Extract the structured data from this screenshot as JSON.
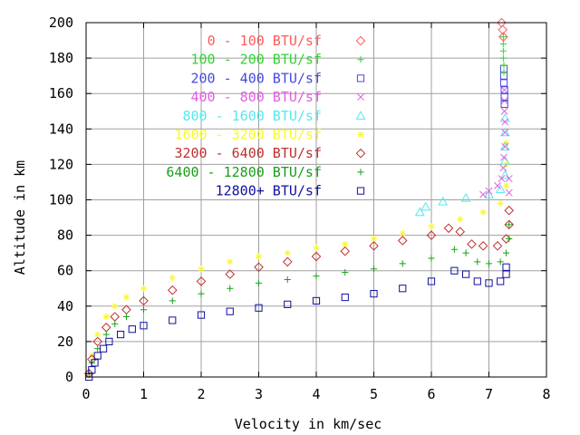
{
  "chart_data": {
    "type": "scatter",
    "title": "",
    "xlabel": "Velocity in km/sec",
    "ylabel": "Altitude in km",
    "xlim": [
      0,
      8
    ],
    "ylim": [
      0,
      200
    ],
    "xticks": [
      0,
      1,
      2,
      3,
      4,
      5,
      6,
      7,
      8
    ],
    "yticks": [
      0,
      20,
      40,
      60,
      80,
      100,
      120,
      140,
      160,
      180,
      200
    ],
    "grid": true,
    "legend_position": "top-left",
    "series": [
      {
        "name": "0 - 100 BTU/sf",
        "color": "#ff5a5a",
        "marker": "diamond",
        "points": [
          [
            7.22,
            200
          ],
          [
            7.24,
            196
          ],
          [
            7.25,
            192
          ]
        ]
      },
      {
        "name": "100 - 200 BTU/sf",
        "color": "#33d433",
        "marker": "plus",
        "points": [
          [
            7.25,
            192
          ],
          [
            7.25,
            188
          ],
          [
            7.25,
            184
          ],
          [
            7.25,
            180
          ],
          [
            7.26,
            176
          ],
          [
            7.26,
            172
          ]
        ]
      },
      {
        "name": "200 - 400 BTU/sf",
        "color": "#4848e0",
        "marker": "square",
        "points": [
          [
            7.26,
            174
          ],
          [
            7.26,
            170
          ],
          [
            7.26,
            166
          ],
          [
            7.27,
            162
          ],
          [
            7.27,
            158
          ],
          [
            7.27,
            154
          ]
        ]
      },
      {
        "name": "400 - 800 BTU/sf",
        "color": "#e060e0",
        "marker": "x",
        "points": [
          [
            7.27,
            162
          ],
          [
            7.27,
            156
          ],
          [
            7.27,
            150
          ],
          [
            7.28,
            144
          ],
          [
            7.28,
            138
          ],
          [
            7.28,
            130
          ],
          [
            7.26,
            124
          ],
          [
            7.25,
            118
          ],
          [
            7.22,
            112
          ],
          [
            7.15,
            108
          ],
          [
            7.0,
            105
          ],
          [
            6.9,
            103
          ],
          [
            7.35,
            112
          ],
          [
            7.35,
            104
          ]
        ]
      },
      {
        "name": "800 - 1600 BTU/sf",
        "color": "#55e8f0",
        "marker": "triangle",
        "points": [
          [
            7.28,
            146
          ],
          [
            7.28,
            138
          ],
          [
            7.28,
            130
          ],
          [
            7.28,
            122
          ],
          [
            7.28,
            114
          ],
          [
            7.2,
            106
          ],
          [
            7.0,
            103
          ],
          [
            6.6,
            101
          ],
          [
            6.2,
            99
          ],
          [
            5.9,
            96
          ],
          [
            5.8,
            93
          ]
        ]
      },
      {
        "name": "1600 - 3200 BTU/sf",
        "color": "#f8f830",
        "marker": "star",
        "points": [
          [
            0.05,
            2
          ],
          [
            0.1,
            12
          ],
          [
            0.2,
            24
          ],
          [
            0.35,
            34
          ],
          [
            0.5,
            40
          ],
          [
            0.7,
            45
          ],
          [
            1.0,
            50
          ],
          [
            1.5,
            56
          ],
          [
            2.0,
            61
          ],
          [
            2.5,
            65
          ],
          [
            3.0,
            68
          ],
          [
            3.5,
            70
          ],
          [
            4.0,
            73
          ],
          [
            4.5,
            75
          ],
          [
            5.0,
            78
          ],
          [
            5.5,
            81
          ],
          [
            6.0,
            85
          ],
          [
            6.5,
            89
          ],
          [
            6.9,
            93
          ],
          [
            7.2,
            98
          ],
          [
            7.3,
            108
          ],
          [
            7.3,
            120
          ],
          [
            7.3,
            132
          ]
        ]
      },
      {
        "name": "3200 - 6400 BTU/sf",
        "color": "#c03030",
        "marker": "diamond",
        "points": [
          [
            0.05,
            2
          ],
          [
            0.1,
            10
          ],
          [
            0.2,
            20
          ],
          [
            0.35,
            28
          ],
          [
            0.5,
            34
          ],
          [
            0.7,
            38
          ],
          [
            1.0,
            43
          ],
          [
            1.5,
            49
          ],
          [
            2.0,
            54
          ],
          [
            2.5,
            58
          ],
          [
            3.0,
            62
          ],
          [
            3.5,
            65
          ],
          [
            4.0,
            68
          ],
          [
            4.5,
            71
          ],
          [
            5.0,
            74
          ],
          [
            5.5,
            77
          ],
          [
            6.0,
            80
          ],
          [
            6.3,
            84
          ],
          [
            6.5,
            82
          ],
          [
            6.7,
            75
          ],
          [
            6.9,
            74
          ],
          [
            7.15,
            74
          ],
          [
            7.3,
            78
          ],
          [
            7.35,
            86
          ],
          [
            7.35,
            94
          ]
        ]
      },
      {
        "name": "6400 - 12800 BTU/sf",
        "color": "#18a018",
        "marker": "plus",
        "points": [
          [
            0.05,
            2
          ],
          [
            0.1,
            8
          ],
          [
            0.2,
            16
          ],
          [
            0.35,
            24
          ],
          [
            0.5,
            30
          ],
          [
            0.7,
            34
          ],
          [
            1.0,
            38
          ],
          [
            1.5,
            43
          ],
          [
            2.0,
            47
          ],
          [
            2.5,
            50
          ],
          [
            3.0,
            53
          ],
          [
            3.5,
            55
          ],
          [
            4.0,
            57
          ],
          [
            4.5,
            59
          ],
          [
            5.0,
            61
          ],
          [
            5.5,
            64
          ],
          [
            6.0,
            67
          ],
          [
            6.4,
            72
          ],
          [
            6.6,
            70
          ],
          [
            6.8,
            65
          ],
          [
            7.0,
            64
          ],
          [
            7.2,
            65
          ],
          [
            7.3,
            70
          ],
          [
            7.35,
            78
          ],
          [
            7.35,
            86
          ]
        ]
      },
      {
        "name": "12800+ BTU/sf",
        "color": "#1010a0",
        "marker": "square",
        "points": [
          [
            0.05,
            0
          ],
          [
            0.1,
            4
          ],
          [
            0.15,
            8
          ],
          [
            0.2,
            12
          ],
          [
            0.3,
            16
          ],
          [
            0.4,
            20
          ],
          [
            0.6,
            24
          ],
          [
            0.8,
            27
          ],
          [
            1.0,
            29
          ],
          [
            1.5,
            32
          ],
          [
            2.0,
            35
          ],
          [
            2.5,
            37
          ],
          [
            3.0,
            39
          ],
          [
            3.5,
            41
          ],
          [
            4.0,
            43
          ],
          [
            4.5,
            45
          ],
          [
            5.0,
            47
          ],
          [
            5.5,
            50
          ],
          [
            6.0,
            54
          ],
          [
            6.4,
            60
          ],
          [
            6.6,
            58
          ],
          [
            6.8,
            54
          ],
          [
            7.0,
            53
          ],
          [
            7.2,
            54
          ],
          [
            7.3,
            58
          ],
          [
            7.3,
            62
          ]
        ]
      }
    ]
  }
}
